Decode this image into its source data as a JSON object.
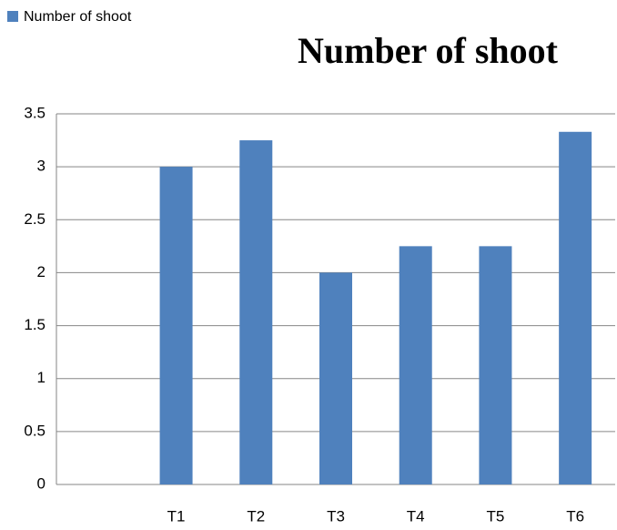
{
  "chart_data": {
    "type": "bar",
    "title": "Number of shoot",
    "categories": [
      null,
      "T1",
      "T2",
      "T3",
      "T4",
      "T5",
      "T6"
    ],
    "series": [
      {
        "name": "Number of shoot",
        "color": "#4f81bd",
        "values": [
          null,
          3,
          3.25,
          2,
          2.25,
          2.25,
          3.33
        ]
      }
    ],
    "ylim": [
      0,
      3.5
    ],
    "yticks": [
      0,
      0.5,
      1,
      1.5,
      2,
      2.5,
      3,
      3.5
    ],
    "grid": true,
    "legend": "top-left"
  }
}
